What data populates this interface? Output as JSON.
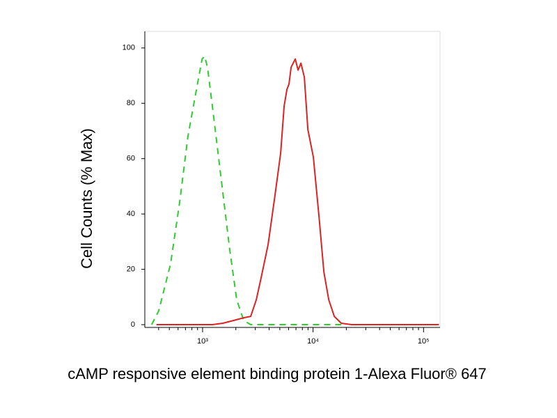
{
  "chart_data": {
    "type": "line",
    "xlabel": "cAMP responsive element binding protein 1-Alexa Fluor® 647",
    "ylabel": "Cell Counts (% Max)",
    "xscale": "log",
    "xlim": [
      300,
      141000
    ],
    "ylim": [
      -1,
      106
    ],
    "xticks": [
      {
        "value": 1000,
        "label": "10³"
      },
      {
        "value": 10000,
        "label": "10⁴"
      },
      {
        "value": 100000,
        "label": "10⁵"
      }
    ],
    "xminorticks": [
      400,
      500,
      600,
      700,
      800,
      900,
      2000,
      3000,
      4000,
      5000,
      6000,
      7000,
      8000,
      9000,
      20000,
      30000,
      40000,
      50000,
      60000,
      70000,
      80000,
      90000
    ],
    "yticks": [
      0,
      20,
      40,
      60,
      80,
      100
    ],
    "series": [
      {
        "color": "#2ecc2e",
        "dashed": true,
        "x": [
          346,
          401,
          513,
          619,
          737,
          890,
          990,
          1044,
          1107,
          1226,
          1480,
          1762,
          2038,
          2357,
          2725,
          10000,
          18000
        ],
        "values": [
          0,
          5,
          22,
          44,
          68,
          86,
          96,
          97,
          93,
          79,
          52,
          27,
          9,
          1.5,
          0,
          0,
          0
        ]
      },
      {
        "color": "#dd2222",
        "dashed": false,
        "x": [
          383,
          1226,
          1524,
          1896,
          2357,
          2725,
          3061,
          3388,
          3918,
          4530,
          5090,
          5471,
          5796,
          6058,
          6327,
          6905,
          7314,
          7762,
          8341,
          8970,
          10070,
          11320,
          12530,
          13870,
          15560,
          18020,
          22400,
          137700
        ],
        "values": [
          0,
          0,
          0.5,
          1.5,
          2.5,
          3,
          9,
          17,
          29,
          47,
          62,
          79,
          85,
          87,
          93,
          96,
          92,
          94.5,
          89.5,
          70.5,
          60.5,
          39,
          19,
          9,
          3,
          0.5,
          0,
          0
        ]
      }
    ]
  }
}
